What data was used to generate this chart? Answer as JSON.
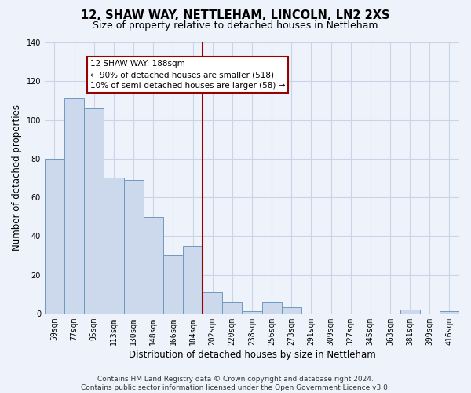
{
  "title": "12, SHAW WAY, NETTLEHAM, LINCOLN, LN2 2XS",
  "subtitle": "Size of property relative to detached houses in Nettleham",
  "xlabel": "Distribution of detached houses by size in Nettleham",
  "ylabel": "Number of detached properties",
  "bar_labels": [
    "59sqm",
    "77sqm",
    "95sqm",
    "113sqm",
    "130sqm",
    "148sqm",
    "166sqm",
    "184sqm",
    "202sqm",
    "220sqm",
    "238sqm",
    "256sqm",
    "273sqm",
    "291sqm",
    "309sqm",
    "327sqm",
    "345sqm",
    "363sqm",
    "381sqm",
    "399sqm",
    "416sqm"
  ],
  "bar_values": [
    80,
    111,
    106,
    70,
    69,
    50,
    30,
    35,
    11,
    6,
    1,
    6,
    3,
    0,
    0,
    0,
    0,
    0,
    2,
    0,
    1
  ],
  "bar_color": "#ccd9ec",
  "bar_edge_color": "#7099c0",
  "vline_x_index": 7.5,
  "vline_color": "#990000",
  "annotation_box_text": "12 SHAW WAY: 188sqm\n← 90% of detached houses are smaller (518)\n10% of semi-detached houses are larger (58) →",
  "ylim": [
    0,
    140
  ],
  "yticks": [
    0,
    20,
    40,
    60,
    80,
    100,
    120,
    140
  ],
  "footnote": "Contains HM Land Registry data © Crown copyright and database right 2024.\nContains public sector information licensed under the Open Government Licence v3.0.",
  "bg_color": "#eef2fa",
  "grid_color": "#c8d4e8",
  "title_fontsize": 10.5,
  "subtitle_fontsize": 9,
  "label_fontsize": 8.5,
  "tick_fontsize": 7,
  "footnote_fontsize": 6.5
}
